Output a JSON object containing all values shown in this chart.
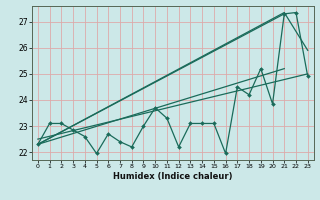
{
  "title": "",
  "xlabel": "Humidex (Indice chaleur)",
  "background_color": "#cce8e8",
  "grid_color": "#ddaaaa",
  "line_color": "#1a6b5a",
  "xlim": [
    -0.5,
    23.5
  ],
  "ylim": [
    21.7,
    27.6
  ],
  "xticks": [
    0,
    1,
    2,
    3,
    4,
    5,
    6,
    7,
    8,
    9,
    10,
    11,
    12,
    13,
    14,
    15,
    16,
    17,
    18,
    19,
    20,
    21,
    22,
    23
  ],
  "yticks": [
    22,
    23,
    24,
    25,
    26,
    27
  ],
  "data_x": [
    0,
    1,
    2,
    3,
    4,
    5,
    6,
    7,
    8,
    9,
    10,
    11,
    12,
    13,
    14,
    15,
    16,
    17,
    18,
    19,
    20,
    21,
    22,
    23
  ],
  "data_y": [
    22.3,
    23.1,
    23.1,
    22.85,
    22.6,
    21.95,
    22.7,
    22.4,
    22.2,
    23.0,
    23.7,
    23.3,
    22.2,
    23.1,
    23.1,
    23.1,
    21.95,
    24.5,
    24.2,
    25.2,
    23.85,
    27.3,
    27.35,
    24.9
  ],
  "line1_x": [
    0,
    21
  ],
  "line1_y": [
    22.3,
    27.3
  ],
  "line2_x": [
    0,
    21,
    23
  ],
  "line2_y": [
    22.3,
    27.35,
    25.9
  ],
  "line3_x": [
    0,
    23
  ],
  "line3_y": [
    22.5,
    25.0
  ],
  "line4_x": [
    0,
    21
  ],
  "line4_y": [
    22.3,
    25.2
  ]
}
